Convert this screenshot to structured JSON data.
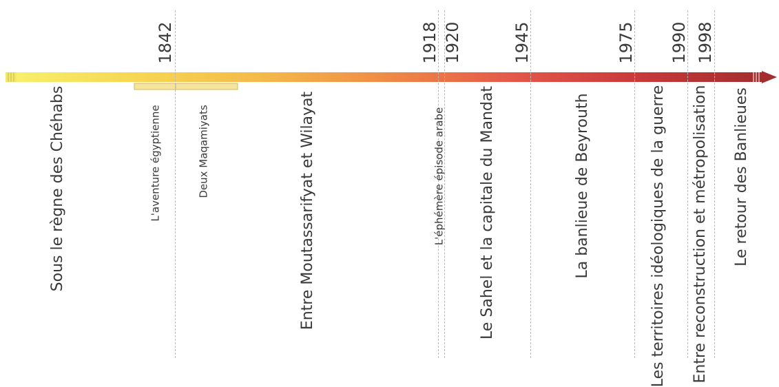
{
  "colors": {
    "bar_gradient": [
      "#f7ef6a",
      "#f6d652",
      "#f4b94a",
      "#ef8a45",
      "#e4584a",
      "#c93a3a",
      "#a42e2e"
    ],
    "sub_band": "#f4e59a",
    "sub_band_border": "#d8b75a",
    "divider": "#b8b8b8",
    "text": "#3a3a3a"
  },
  "years": [
    "1842",
    "1918",
    "1920",
    "1945",
    "1975",
    "1990",
    "1998"
  ],
  "periods": [
    "Sous le règne des Chéhabs",
    "L'aventure égyptienne",
    "Deux Maqamiyats",
    "Entre Moutassarifyat et Wilayat",
    "L'éphémère épisode arabe",
    "Le Sahel et la capitale du Mandat",
    "La banlieue de Beyrouth",
    "Les territoires idéologiques de la guerre",
    "Entre reconstruction et métropolisation",
    "Le retour des Banlieues"
  ]
}
